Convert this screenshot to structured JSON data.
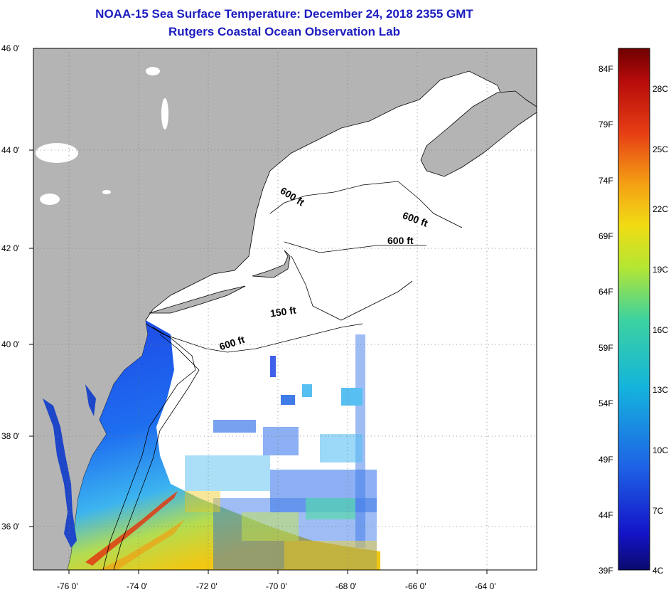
{
  "title": {
    "line1": "NOAA-15 Sea Surface Temperature:  December 24, 2018 2355 GMT",
    "line2": "Rutgers Coastal Ocean Observation Lab"
  },
  "axes": {
    "lat_labels": [
      "46 0'",
      "44 0'",
      "42 0'",
      "40 0'",
      "38 0'",
      "36 0'"
    ],
    "lon_labels": [
      "-76 0'",
      "-74 0'",
      "-72 0'",
      "-70 0'",
      "-68 0'",
      "-66 0'",
      "-64 0'"
    ]
  },
  "contour_labels": [
    "600 ft",
    "600 ft",
    "600 ft",
    "150 ft",
    "600 ft"
  ],
  "colorbar": {
    "fahrenheit": [
      "84F",
      "79F",
      "74F",
      "69F",
      "64F",
      "59F",
      "54F",
      "49F",
      "44F",
      "39F"
    ],
    "celsius": [
      "28C",
      "25C",
      "22C",
      "19C",
      "16C",
      "13C",
      "10C",
      "7C",
      "4C"
    ]
  },
  "colors": {
    "land": "#b4b4b4",
    "title": "#1c1cbf",
    "warm": "#e03a12",
    "cold": "#1a1ad6"
  }
}
